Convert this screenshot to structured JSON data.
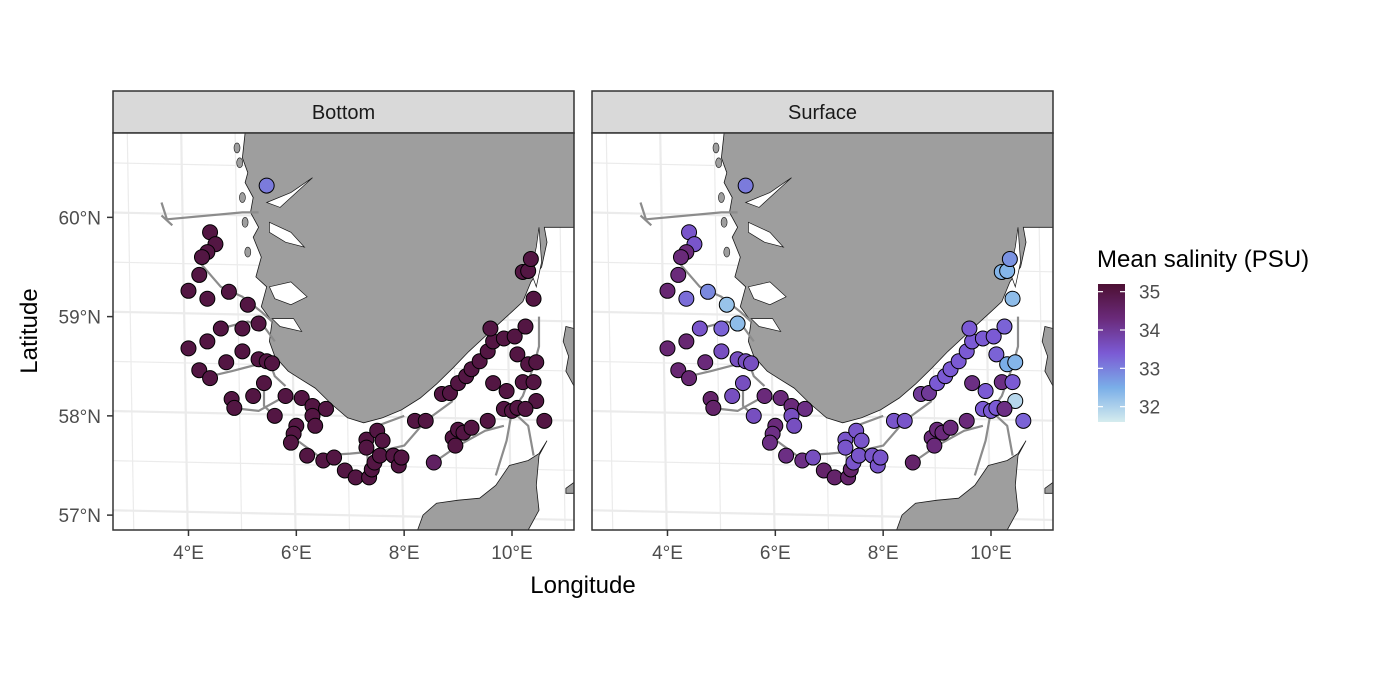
{
  "chart_data": {
    "type": "scatter",
    "x_label": "Longitude",
    "y_label": "Latitude",
    "legend": {
      "title": "Mean salinity (PSU)",
      "placement": "right",
      "ticks": [
        "35",
        "34",
        "33",
        "32"
      ],
      "tick_values": [
        35,
        34,
        33,
        32
      ],
      "range": [
        31.6,
        35.2
      ],
      "colors": [
        "#4d1033",
        "#6a2a7a",
        "#7b5ad4",
        "#7aaee8",
        "#d5ecee"
      ]
    },
    "x_ticks": [
      {
        "value": 4,
        "label": "4°E"
      },
      {
        "value": 6,
        "label": "6°E"
      },
      {
        "value": 8,
        "label": "8°E"
      },
      {
        "value": 10,
        "label": "10°E"
      }
    ],
    "y_ticks": [
      {
        "value": 60,
        "label": "60°N"
      },
      {
        "value": 59,
        "label": "59°N"
      },
      {
        "value": 58,
        "label": "58°N"
      },
      {
        "value": 57,
        "label": "57°N"
      }
    ],
    "xlim": [
      2.6,
      11.15
    ],
    "ylim": [
      56.85,
      60.85
    ],
    "colors": {
      "land": "#9e9e9e",
      "panel_strip": "#d9d9d9",
      "grid": "#ebebeb",
      "track": "#8c8c8c"
    },
    "stations": [
      [
        5.45,
        60.32
      ],
      [
        4.4,
        59.85
      ],
      [
        4.5,
        59.73
      ],
      [
        4.35,
        59.65
      ],
      [
        4.25,
        59.6
      ],
      [
        4.2,
        59.42
      ],
      [
        4.0,
        59.26
      ],
      [
        4.35,
        59.18
      ],
      [
        4.75,
        59.25
      ],
      [
        5.1,
        59.12
      ],
      [
        5.0,
        58.88
      ],
      [
        5.3,
        58.93
      ],
      [
        4.6,
        58.88
      ],
      [
        4.35,
        58.75
      ],
      [
        4.0,
        58.68
      ],
      [
        4.2,
        58.46
      ],
      [
        4.4,
        58.38
      ],
      [
        5.0,
        58.65
      ],
      [
        5.3,
        58.57
      ],
      [
        5.45,
        58.55
      ],
      [
        5.55,
        58.53
      ],
      [
        4.7,
        58.54
      ],
      [
        5.4,
        58.33
      ],
      [
        4.8,
        58.17
      ],
      [
        4.85,
        58.08
      ],
      [
        5.2,
        58.2
      ],
      [
        5.6,
        58.0
      ],
      [
        5.8,
        58.2
      ],
      [
        6.1,
        58.18
      ],
      [
        6.3,
        58.1
      ],
      [
        6.55,
        58.07
      ],
      [
        6.3,
        58.0
      ],
      [
        6.0,
        57.9
      ],
      [
        6.35,
        57.9
      ],
      [
        5.95,
        57.82
      ],
      [
        5.9,
        57.73
      ],
      [
        6.2,
        57.6
      ],
      [
        6.5,
        57.55
      ],
      [
        6.7,
        57.58
      ],
      [
        6.9,
        57.45
      ],
      [
        7.1,
        57.38
      ],
      [
        7.3,
        57.76
      ],
      [
        7.3,
        57.68
      ],
      [
        7.35,
        57.38
      ],
      [
        7.4,
        57.46
      ],
      [
        7.45,
        57.53
      ],
      [
        7.55,
        57.6
      ],
      [
        7.5,
        57.85
      ],
      [
        7.6,
        57.75
      ],
      [
        7.8,
        57.6
      ],
      [
        7.9,
        57.5
      ],
      [
        7.95,
        57.58
      ],
      [
        8.2,
        57.95
      ],
      [
        8.4,
        57.95
      ],
      [
        8.55,
        57.53
      ],
      [
        8.7,
        58.22
      ],
      [
        8.85,
        58.23
      ],
      [
        8.9,
        57.78
      ],
      [
        8.95,
        57.7
      ],
      [
        9.0,
        57.86
      ],
      [
        9.1,
        57.83
      ],
      [
        9.25,
        57.88
      ],
      [
        9.55,
        57.95
      ],
      [
        9.0,
        58.33
      ],
      [
        9.15,
        58.4
      ],
      [
        9.25,
        58.47
      ],
      [
        9.4,
        58.55
      ],
      [
        9.55,
        58.65
      ],
      [
        9.65,
        58.75
      ],
      [
        9.6,
        58.88
      ],
      [
        9.85,
        58.78
      ],
      [
        10.05,
        58.8
      ],
      [
        10.25,
        58.9
      ],
      [
        10.1,
        58.62
      ],
      [
        10.3,
        58.52
      ],
      [
        10.45,
        58.54
      ],
      [
        9.65,
        58.33
      ],
      [
        9.9,
        58.25
      ],
      [
        10.2,
        58.34
      ],
      [
        10.4,
        58.34
      ],
      [
        10.45,
        58.15
      ],
      [
        9.85,
        58.07
      ],
      [
        10.0,
        58.05
      ],
      [
        10.1,
        58.08
      ],
      [
        10.25,
        58.07
      ],
      [
        10.6,
        57.95
      ],
      [
        10.2,
        59.45
      ],
      [
        10.3,
        59.46
      ],
      [
        10.35,
        59.58
      ],
      [
        10.4,
        59.18
      ]
    ],
    "bottom_values": [
      33.05,
      35.0,
      35.0,
      35.0,
      35.0,
      35.0,
      35.0,
      35.0,
      35.0,
      35.0,
      35.0,
      35.0,
      35.0,
      35.0,
      35.0,
      35.0,
      35.0,
      35.0,
      35.0,
      35.0,
      35.0,
      35.0,
      35.0,
      35.0,
      35.0,
      35.0,
      35.0,
      35.0,
      35.0,
      35.0,
      35.0,
      35.0,
      35.0,
      35.0,
      35.0,
      35.0,
      35.0,
      35.0,
      35.0,
      35.0,
      35.0,
      35.0,
      35.0,
      35.0,
      35.0,
      35.0,
      35.0,
      35.0,
      35.0,
      35.0,
      35.0,
      35.0,
      35.0,
      35.0,
      34.6,
      35.0,
      35.0,
      35.0,
      35.0,
      35.0,
      35.0,
      35.0,
      35.0,
      35.0,
      35.0,
      35.0,
      35.0,
      35.0,
      35.0,
      35.0,
      35.0,
      35.0,
      35.0,
      35.0,
      35.0,
      35.0,
      35.0,
      35.0,
      35.0,
      35.0,
      35.0,
      35.0,
      35.0,
      35.0,
      35.0,
      35.0,
      35.0,
      35.0,
      35.0,
      35.0
    ],
    "surface_values": [
      33.05,
      33.5,
      33.5,
      34.3,
      34.3,
      34.3,
      34.4,
      33.2,
      32.9,
      32.2,
      33.3,
      32.3,
      33.5,
      34.4,
      34.4,
      34.4,
      34.4,
      33.6,
      33.6,
      33.6,
      33.6,
      34.3,
      33.6,
      34.5,
      34.5,
      33.6,
      33.6,
      34.3,
      34.3,
      34.3,
      34.2,
      33.6,
      34.3,
      33.6,
      34.2,
      34.2,
      34.2,
      34.2,
      33.6,
      34.5,
      34.5,
      33.5,
      33.5,
      34.5,
      34.5,
      33.5,
      33.5,
      33.5,
      33.5,
      33.5,
      33.5,
      33.5,
      33.5,
      33.5,
      34.5,
      34.0,
      34.0,
      34.3,
      34.3,
      34.3,
      34.3,
      34.3,
      34.3,
      33.4,
      33.4,
      33.4,
      33.4,
      33.4,
      33.4,
      33.4,
      33.4,
      33.4,
      33.3,
      33.3,
      32.5,
      32.4,
      34.2,
      33.4,
      34.2,
      33.4,
      31.9,
      33.4,
      33.4,
      33.4,
      34.2,
      33.3,
      32.4,
      32.4,
      32.8,
      32.3
    ],
    "panels": [
      {
        "strip_label": "Bottom"
      },
      {
        "strip_label": "Surface"
      }
    ]
  }
}
